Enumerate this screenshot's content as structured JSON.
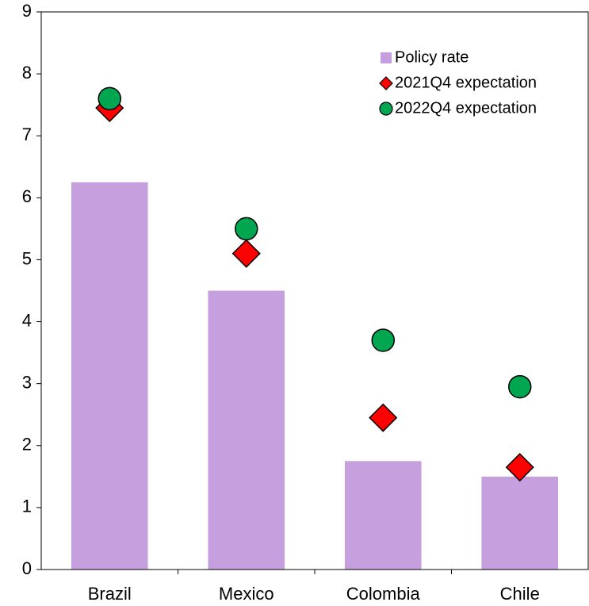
{
  "chart_data": {
    "type": "bar",
    "categories": [
      "Brazil",
      "Mexico",
      "Colombia",
      "Chile"
    ],
    "series": [
      {
        "name": "Policy rate",
        "color": "#c59fde",
        "marker": "bar",
        "values": [
          6.25,
          4.5,
          1.75,
          1.5
        ]
      },
      {
        "name": "2021Q4 expectation",
        "color": "#ff0000",
        "marker": "diamond",
        "values": [
          7.45,
          5.1,
          2.45,
          1.65
        ]
      },
      {
        "name": "2022Q4 expectation",
        "color": "#00a650",
        "marker": "circle",
        "values": [
          7.6,
          5.5,
          3.7,
          2.95
        ]
      }
    ],
    "ylim": [
      0,
      9
    ],
    "yticks": [
      0,
      1,
      2,
      3,
      4,
      5,
      6,
      7,
      8,
      9
    ],
    "legend": "upper right"
  }
}
